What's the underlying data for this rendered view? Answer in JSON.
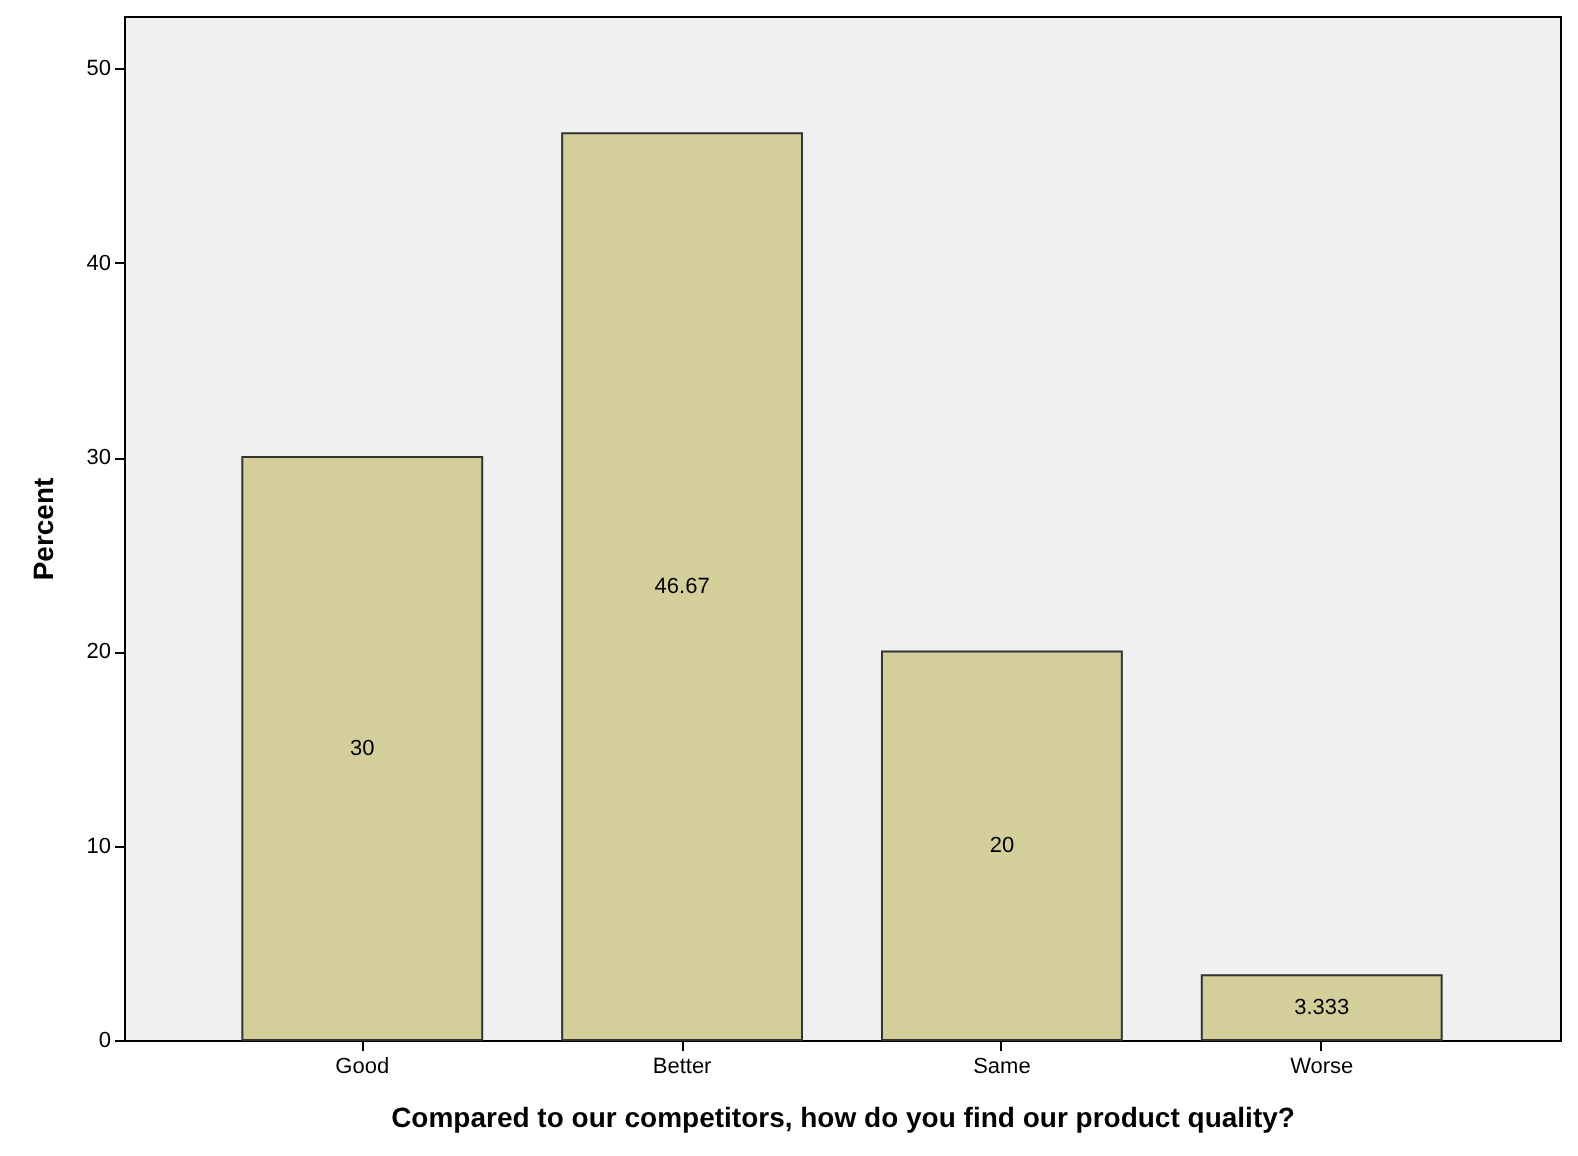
{
  "chart_data": {
    "type": "bar",
    "xlabel": "Compared to our competitors, how do you find our product quality?",
    "ylabel": "Percent",
    "categories": [
      "Good",
      "Better",
      "Same",
      "Worse"
    ],
    "values": [
      30,
      46.67,
      20,
      3.333
    ],
    "color": "#d3ce9a",
    "data_labels": true,
    "ylim": [
      0,
      52.7
    ],
    "yticks": [
      0,
      10,
      20,
      30,
      40,
      50
    ],
    "grid": false
  }
}
